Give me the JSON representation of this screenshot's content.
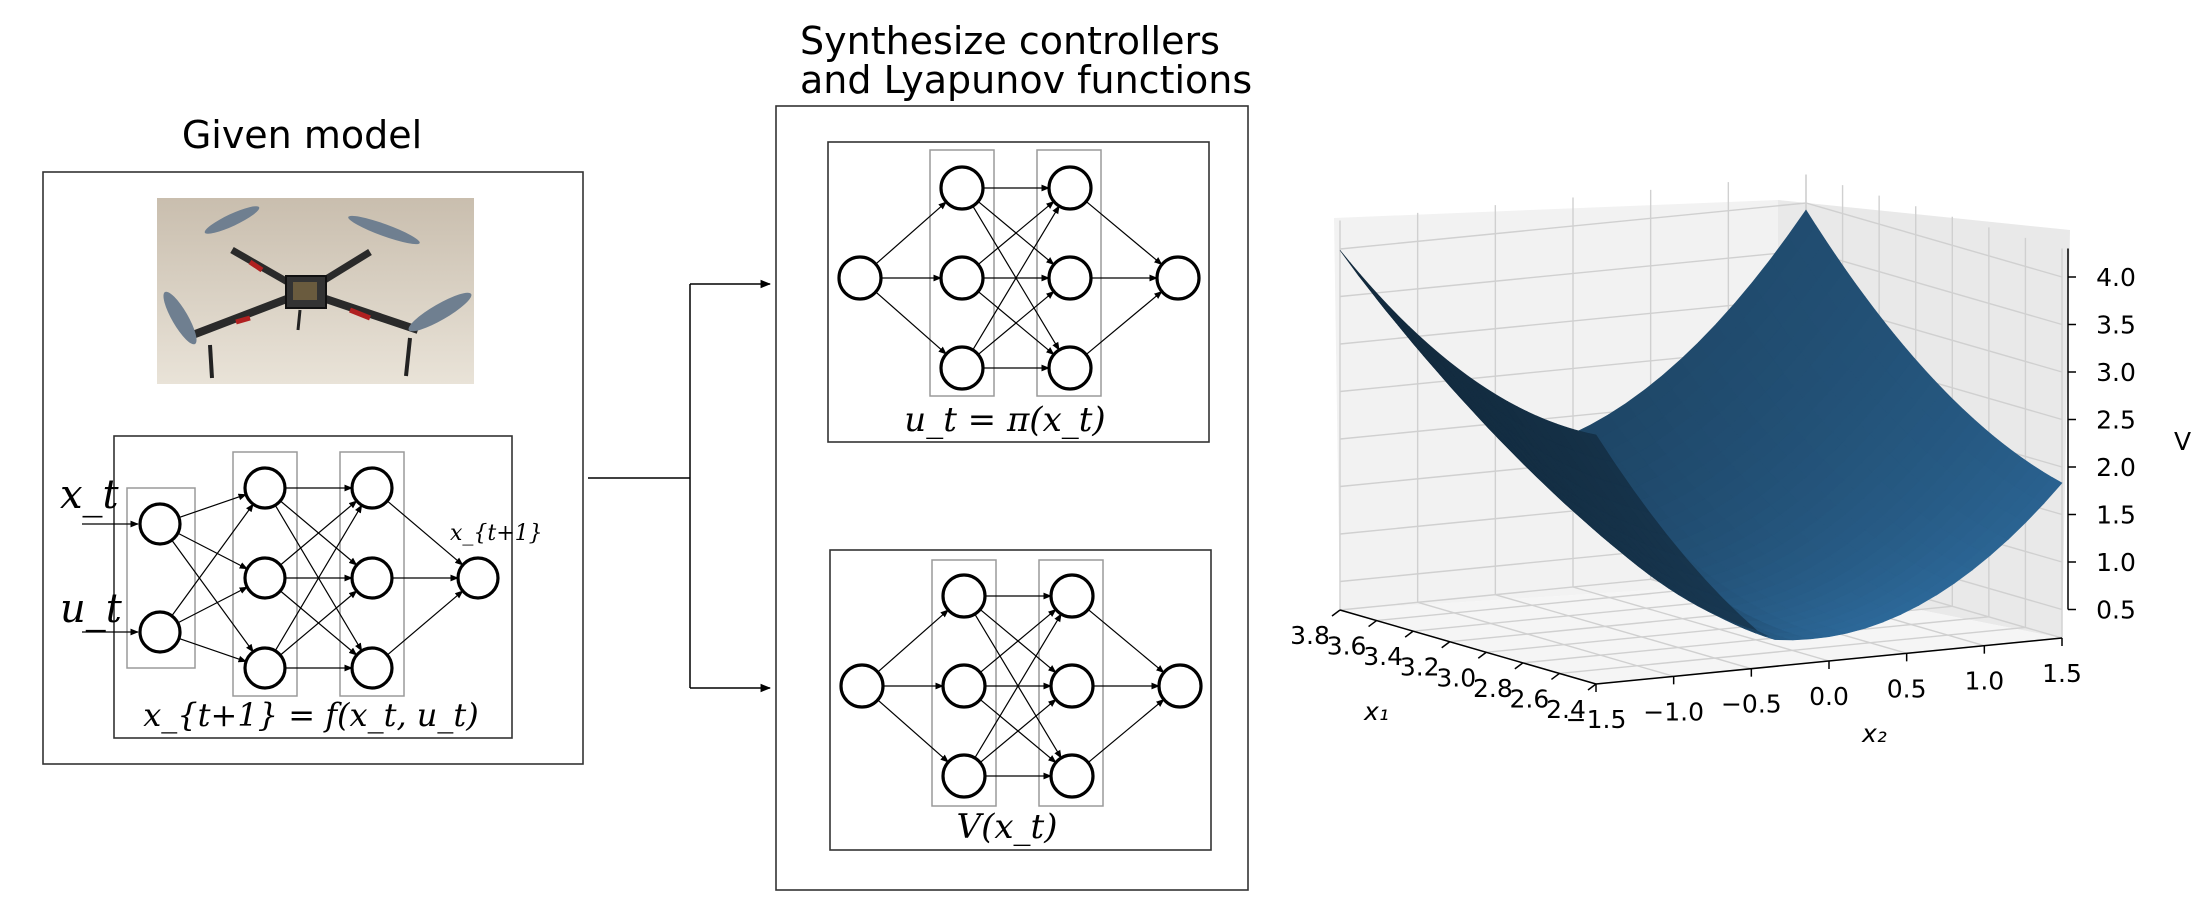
{
  "left_panel": {
    "title": "Given model",
    "photo": {
      "icon": "quadcopter-drone-photo"
    },
    "network": {
      "input_labels": [
        "x_t",
        "u_t"
      ],
      "output_label": "x_{t+1}",
      "equation": "x_{t+1} = f(x_t, u_t)",
      "layers": [
        2,
        3,
        3,
        1
      ]
    }
  },
  "middle_panel": {
    "title_line1": "Synthesize controllers",
    "title_line2": "and Lyapunov functions",
    "controller_net": {
      "equation": "u_t = π(x_t)",
      "layers": [
        1,
        3,
        3,
        1
      ]
    },
    "lyapunov_net": {
      "equation": "V(x_t)",
      "layers": [
        1,
        3,
        3,
        1
      ]
    }
  },
  "chart_data": {
    "type": "surface3d",
    "title": "",
    "xlabel": "x₁",
    "ylabel": "x₂",
    "zlabel": "V",
    "x_ticks": [
      "2.4",
      "2.6",
      "2.8",
      "3.0",
      "3.2",
      "3.4",
      "3.6",
      "3.8"
    ],
    "y_ticks": [
      "−1.5",
      "−1.0",
      "−0.5",
      "0.0",
      "0.5",
      "1.0",
      "1.5"
    ],
    "z_ticks": [
      "0.5",
      "1.0",
      "1.5",
      "2.0",
      "2.5",
      "3.0",
      "3.5",
      "4.0"
    ],
    "xlim": [
      2.4,
      3.8
    ],
    "ylim": [
      -1.5,
      1.5
    ],
    "zlim": [
      0.2,
      4.3
    ],
    "surface_color": "#2f6ea1",
    "grid": true
  }
}
